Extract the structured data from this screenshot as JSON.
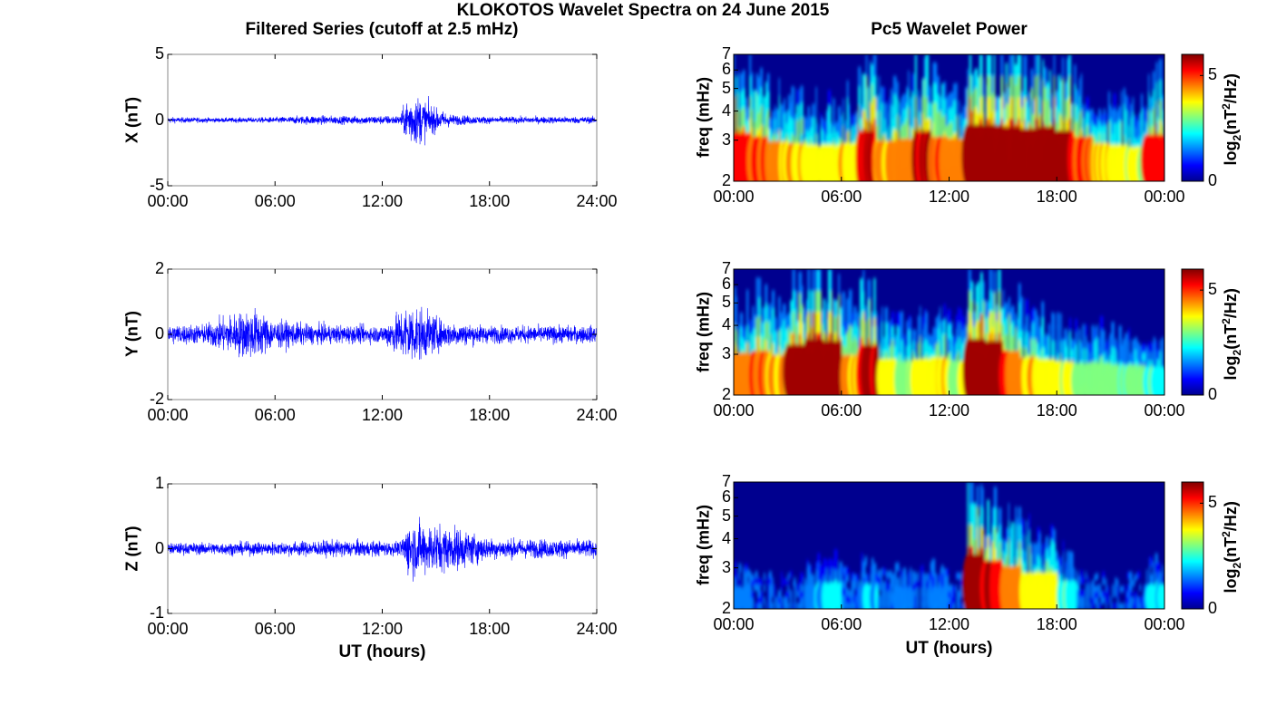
{
  "figure": {
    "title": "KLOKOTOS Wavelet Spectra on 24 June 2015",
    "left_title": "Filtered Series (cutoff at 2.5 mHz)",
    "right_title": "Pc5 Wavelet Power",
    "xlabel": "UT (hours)",
    "colorbar_label": "log2(nT2/Hz)",
    "colors": {
      "trace": "#0000ff",
      "background": "#00008f"
    }
  },
  "chart_data": [
    {
      "type": "line",
      "id": "X",
      "ylabel": "X (nT)",
      "ylim": [
        -5,
        5
      ],
      "yticks": [
        "5",
        "0",
        "-5"
      ],
      "xlim": [
        0,
        24
      ],
      "xticks": [
        "00:00",
        "06:00",
        "12:00",
        "18:00",
        "24:00"
      ],
      "series": [
        {
          "values": [
            {
              "t": 0,
              "amp": 0.25
            },
            {
              "t": 3,
              "amp": 0.2
            },
            {
              "t": 6,
              "amp": 0.25
            },
            {
              "t": 8,
              "amp": 0.4
            },
            {
              "t": 10,
              "amp": 0.35
            },
            {
              "t": 13,
              "amp": 0.4
            },
            {
              "t": 13.5,
              "amp": 2.3
            },
            {
              "t": 14.2,
              "amp": 2.0
            },
            {
              "t": 15,
              "amp": 1.0
            },
            {
              "t": 16,
              "amp": 0.45
            },
            {
              "t": 18,
              "amp": 0.3
            },
            {
              "t": 24,
              "amp": 0.3
            }
          ]
        }
      ]
    },
    {
      "type": "line",
      "id": "Y",
      "ylabel": "Y (nT)",
      "ylim": [
        -2,
        2
      ],
      "yticks": [
        "2",
        "0",
        "-2"
      ],
      "xlim": [
        0,
        24
      ],
      "xticks": [
        "00:00",
        "06:00",
        "12:00",
        "18:00",
        "24:00"
      ],
      "series": [
        {
          "values": [
            {
              "t": 0,
              "amp": 0.35
            },
            {
              "t": 2,
              "amp": 0.35
            },
            {
              "t": 3.5,
              "amp": 0.7
            },
            {
              "t": 4.8,
              "amp": 0.9
            },
            {
              "t": 6,
              "amp": 0.5
            },
            {
              "t": 8,
              "amp": 0.35
            },
            {
              "t": 12,
              "amp": 0.3
            },
            {
              "t": 13.5,
              "amp": 1.1
            },
            {
              "t": 14.2,
              "amp": 0.9
            },
            {
              "t": 15.5,
              "amp": 0.45
            },
            {
              "t": 18,
              "amp": 0.3
            },
            {
              "t": 24,
              "amp": 0.3
            }
          ]
        }
      ]
    },
    {
      "type": "line",
      "id": "Z",
      "ylabel": "Z (nT)",
      "ylim": [
        -1,
        1
      ],
      "yticks": [
        "1",
        "0",
        "-1"
      ],
      "xlim": [
        0,
        24
      ],
      "xticks": [
        "00:00",
        "06:00",
        "12:00",
        "18:00",
        "24:00"
      ],
      "series": [
        {
          "values": [
            {
              "t": 0,
              "amp": 0.1
            },
            {
              "t": 6,
              "amp": 0.12
            },
            {
              "t": 10,
              "amp": 0.15
            },
            {
              "t": 13,
              "amp": 0.12
            },
            {
              "t": 13.5,
              "amp": 0.5
            },
            {
              "t": 14.5,
              "amp": 0.45
            },
            {
              "t": 16.5,
              "amp": 0.35
            },
            {
              "t": 18,
              "amp": 0.18
            },
            {
              "t": 24,
              "amp": 0.15
            }
          ]
        }
      ]
    },
    {
      "type": "heatmap",
      "id": "X-wavelet",
      "ylabel": "freq (mHz)",
      "yticks": [
        "7",
        "6",
        "5",
        "4",
        "3",
        "2"
      ],
      "ylim": [
        2,
        7
      ],
      "xlim": [
        0,
        24
      ],
      "xticks": [
        "00:00",
        "06:00",
        "12:00",
        "18:00",
        "00:00"
      ],
      "clim": [
        0,
        6
      ],
      "cticks": [
        "5",
        "0"
      ],
      "activity": [
        0.8,
        0.7,
        0.6,
        0.55,
        0.5,
        0.5,
        0.55,
        0.85,
        0.6,
        0.65,
        0.85,
        0.7,
        0.65,
        1.0,
        1.0,
        0.95,
        0.9,
        0.95,
        0.85,
        0.7,
        0.55,
        0.5,
        0.45,
        0.75
      ]
    },
    {
      "type": "heatmap",
      "id": "Y-wavelet",
      "ylabel": "freq (mHz)",
      "yticks": [
        "7",
        "6",
        "5",
        "4",
        "3",
        "2"
      ],
      "ylim": [
        2,
        7
      ],
      "xlim": [
        0,
        24
      ],
      "xticks": [
        "00:00",
        "06:00",
        "12:00",
        "18:00",
        "00:00"
      ],
      "clim": [
        0,
        6
      ],
      "cticks": [
        "5",
        "0"
      ],
      "activity": [
        0.65,
        0.7,
        0.6,
        0.85,
        1.0,
        0.95,
        0.6,
        0.85,
        0.5,
        0.45,
        0.5,
        0.55,
        0.45,
        1.0,
        0.95,
        0.7,
        0.55,
        0.5,
        0.45,
        0.4,
        0.4,
        0.35,
        0.35,
        0.3
      ]
    },
    {
      "type": "heatmap",
      "id": "Z-wavelet",
      "ylabel": "freq (mHz)",
      "yticks": [
        "7",
        "6",
        "5",
        "4",
        "3",
        "2"
      ],
      "ylim": [
        2,
        7
      ],
      "xlim": [
        0,
        24
      ],
      "xticks": [
        "00:00",
        "06:00",
        "12:00",
        "18:00",
        "00:00"
      ],
      "clim": [
        0,
        6
      ],
      "cticks": [
        "5",
        "0"
      ],
      "activity": [
        0.15,
        0.05,
        0.05,
        0.05,
        0.2,
        0.25,
        0.1,
        0.2,
        0.1,
        0.15,
        0.1,
        0.15,
        0.05,
        0.95,
        0.8,
        0.65,
        0.5,
        0.5,
        0.3,
        0.1,
        0.05,
        0.05,
        0.05,
        0.2
      ]
    }
  ]
}
